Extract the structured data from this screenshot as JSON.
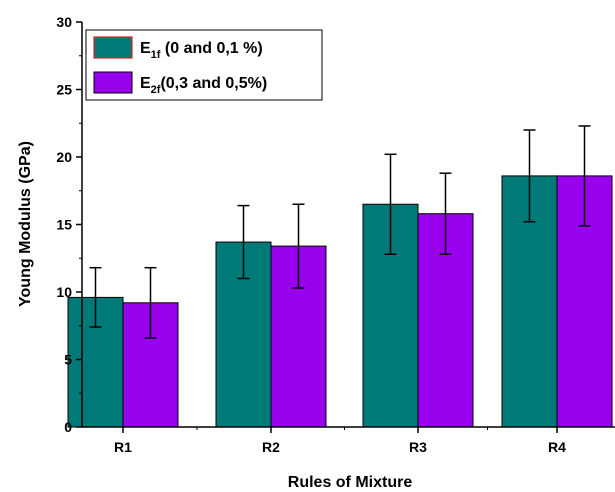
{
  "chart_data": {
    "type": "bar",
    "title": "",
    "xlabel": "Rules of Mixture",
    "ylabel": "Young Modulus (GPa)",
    "ylim": [
      0,
      30
    ],
    "yticks": [
      0,
      5,
      10,
      15,
      20,
      25,
      30
    ],
    "categories": [
      "R1",
      "R2",
      "R3",
      "R4"
    ],
    "grid": false,
    "legend_position": "top-left",
    "series": [
      {
        "legend_main": "E",
        "legend_sub": "1f",
        "legend_rest": " (0 and 0,1 %)",
        "color": "#007a78",
        "values": [
          9.6,
          13.7,
          16.5,
          18.6
        ],
        "errors": [
          2.2,
          2.7,
          3.7,
          3.4
        ]
      },
      {
        "legend_main": "E",
        "legend_sub": "2f",
        "legend_rest": "(0,3 and 0,5%)",
        "color": "#9900ee",
        "values": [
          9.2,
          13.4,
          15.8,
          18.6
        ],
        "errors": [
          2.6,
          3.1,
          3.0,
          3.7
        ]
      }
    ]
  }
}
